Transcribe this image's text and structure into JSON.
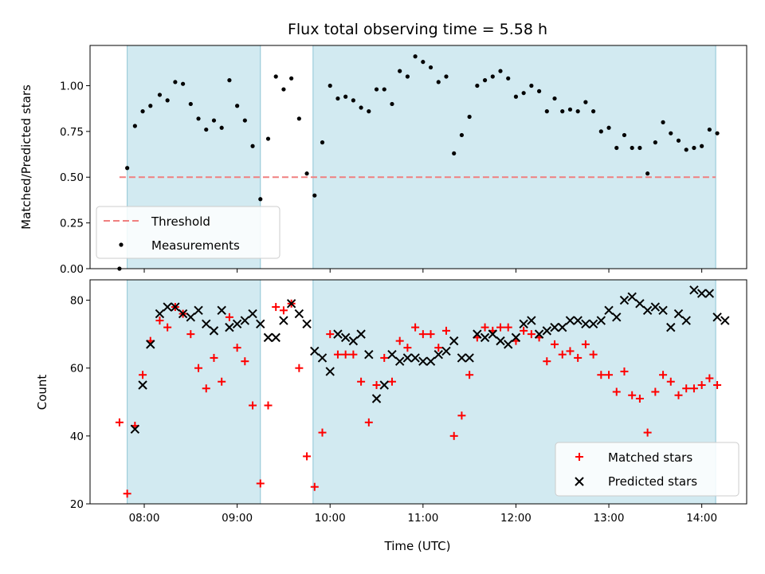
{
  "chart_data": [
    {
      "type": "scatter",
      "title": "Flux total observing time = 5.58 h",
      "ylabel": "Matched/Predicted stars",
      "ylim": [
        0,
        1.22
      ],
      "yticks": [
        "0.00",
        "0.25",
        "0.50",
        "0.75",
        "1.00"
      ],
      "ytick_values": [
        0,
        0.25,
        0.5,
        0.75,
        1.0
      ],
      "threshold": {
        "name": "Threshold",
        "value": 0.5,
        "x_range": [
          "07:44",
          "14:09"
        ],
        "color": "#f08080"
      },
      "measurements": {
        "name": "Measurements",
        "color": "#000000",
        "points": [
          [
            "07:44",
            0.0
          ],
          [
            "07:49",
            0.55
          ],
          [
            "07:54",
            0.78
          ],
          [
            "07:59",
            0.86
          ],
          [
            "08:04",
            0.89
          ],
          [
            "08:10",
            0.95
          ],
          [
            "08:15",
            0.92
          ],
          [
            "08:20",
            1.02
          ],
          [
            "08:25",
            1.01
          ],
          [
            "08:30",
            0.9
          ],
          [
            "08:35",
            0.82
          ],
          [
            "08:40",
            0.76
          ],
          [
            "08:45",
            0.81
          ],
          [
            "08:50",
            0.77
          ],
          [
            "08:55",
            1.03
          ],
          [
            "09:00",
            0.89
          ],
          [
            "09:05",
            0.81
          ],
          [
            "09:10",
            0.67
          ],
          [
            "09:15",
            0.38
          ],
          [
            "09:20",
            0.71
          ],
          [
            "09:25",
            1.05
          ],
          [
            "09:30",
            0.98
          ],
          [
            "09:35",
            1.04
          ],
          [
            "09:40",
            0.82
          ],
          [
            "09:45",
            0.52
          ],
          [
            "09:50",
            0.4
          ],
          [
            "09:55",
            0.69
          ],
          [
            "10:00",
            1.0
          ],
          [
            "10:05",
            0.93
          ],
          [
            "10:10",
            0.94
          ],
          [
            "10:15",
            0.92
          ],
          [
            "10:20",
            0.88
          ],
          [
            "10:25",
            0.86
          ],
          [
            "10:30",
            0.98
          ],
          [
            "10:35",
            0.98
          ],
          [
            "10:40",
            0.9
          ],
          [
            "10:45",
            1.08
          ],
          [
            "10:50",
            1.05
          ],
          [
            "10:55",
            1.16
          ],
          [
            "11:00",
            1.13
          ],
          [
            "11:05",
            1.1
          ],
          [
            "11:10",
            1.02
          ],
          [
            "11:15",
            1.05
          ],
          [
            "11:20",
            0.63
          ],
          [
            "11:25",
            0.73
          ],
          [
            "11:30",
            0.83
          ],
          [
            "11:35",
            1.0
          ],
          [
            "11:40",
            1.03
          ],
          [
            "11:45",
            1.05
          ],
          [
            "11:50",
            1.08
          ],
          [
            "11:55",
            1.04
          ],
          [
            "12:00",
            0.94
          ],
          [
            "12:05",
            0.96
          ],
          [
            "12:10",
            1.0
          ],
          [
            "12:15",
            0.97
          ],
          [
            "12:20",
            0.86
          ],
          [
            "12:25",
            0.93
          ],
          [
            "12:30",
            0.86
          ],
          [
            "12:35",
            0.87
          ],
          [
            "12:40",
            0.86
          ],
          [
            "12:45",
            0.91
          ],
          [
            "12:50",
            0.86
          ],
          [
            "12:55",
            0.75
          ],
          [
            "13:00",
            0.77
          ],
          [
            "13:05",
            0.66
          ],
          [
            "13:10",
            0.73
          ],
          [
            "13:15",
            0.66
          ],
          [
            "13:20",
            0.66
          ],
          [
            "13:25",
            0.52
          ],
          [
            "13:30",
            0.69
          ],
          [
            "13:35",
            0.8
          ],
          [
            "13:40",
            0.74
          ],
          [
            "13:45",
            0.7
          ],
          [
            "13:50",
            0.65
          ],
          [
            "13:55",
            0.66
          ],
          [
            "14:00",
            0.67
          ],
          [
            "14:05",
            0.76
          ],
          [
            "14:10",
            0.74
          ]
        ]
      },
      "legend": [
        "Threshold",
        "Measurements"
      ],
      "legend_position": "lower-left"
    },
    {
      "type": "scatter",
      "xlabel": "Time (UTC)",
      "ylabel": "Count",
      "ylim": [
        20,
        86
      ],
      "yticks": [
        "20",
        "40",
        "60",
        "80"
      ],
      "ytick_values": [
        20,
        40,
        60,
        80
      ],
      "xlim": [
        "07:25",
        "14:29"
      ],
      "xticks": [
        "08:00",
        "09:00",
        "10:00",
        "11:00",
        "12:00",
        "13:00",
        "14:00"
      ],
      "series": [
        {
          "name": "Matched stars",
          "marker": "+",
          "color": "#ff0000",
          "points": [
            [
              "07:44",
              44
            ],
            [
              "07:49",
              23
            ],
            [
              "07:54",
              43
            ],
            [
              "07:59",
              58
            ],
            [
              "08:04",
              68
            ],
            [
              "08:10",
              74
            ],
            [
              "08:15",
              72
            ],
            [
              "08:20",
              78
            ],
            [
              "08:25",
              76
            ],
            [
              "08:30",
              70
            ],
            [
              "08:35",
              60
            ],
            [
              "08:40",
              54
            ],
            [
              "08:45",
              63
            ],
            [
              "08:50",
              56
            ],
            [
              "08:55",
              75
            ],
            [
              "09:00",
              66
            ],
            [
              "09:05",
              62
            ],
            [
              "09:10",
              49
            ],
            [
              "09:15",
              26
            ],
            [
              "09:20",
              49
            ],
            [
              "09:25",
              78
            ],
            [
              "09:30",
              77
            ],
            [
              "09:35",
              79
            ],
            [
              "09:40",
              60
            ],
            [
              "09:45",
              34
            ],
            [
              "09:50",
              25
            ],
            [
              "09:55",
              41
            ],
            [
              "10:00",
              70
            ],
            [
              "10:05",
              64
            ],
            [
              "10:10",
              64
            ],
            [
              "10:15",
              64
            ],
            [
              "10:20",
              56
            ],
            [
              "10:25",
              44
            ],
            [
              "10:30",
              55
            ],
            [
              "10:35",
              63
            ],
            [
              "10:40",
              56
            ],
            [
              "10:45",
              68
            ],
            [
              "10:50",
              66
            ],
            [
              "10:55",
              72
            ],
            [
              "11:00",
              70
            ],
            [
              "11:05",
              70
            ],
            [
              "11:10",
              66
            ],
            [
              "11:15",
              71
            ],
            [
              "11:20",
              40
            ],
            [
              "11:25",
              46
            ],
            [
              "11:30",
              58
            ],
            [
              "11:35",
              69
            ],
            [
              "11:40",
              72
            ],
            [
              "11:45",
              71
            ],
            [
              "11:50",
              72
            ],
            [
              "11:55",
              72
            ],
            [
              "12:00",
              68
            ],
            [
              "12:05",
              71
            ],
            [
              "12:10",
              70
            ],
            [
              "12:15",
              69
            ],
            [
              "12:20",
              62
            ],
            [
              "12:25",
              67
            ],
            [
              "12:30",
              64
            ],
            [
              "12:35",
              65
            ],
            [
              "12:40",
              63
            ],
            [
              "12:45",
              67
            ],
            [
              "12:50",
              64
            ],
            [
              "12:55",
              58
            ],
            [
              "13:00",
              58
            ],
            [
              "13:05",
              53
            ],
            [
              "13:10",
              59
            ],
            [
              "13:15",
              52
            ],
            [
              "13:20",
              51
            ],
            [
              "13:25",
              41
            ],
            [
              "13:30",
              53
            ],
            [
              "13:35",
              58
            ],
            [
              "13:40",
              56
            ],
            [
              "13:45",
              52
            ],
            [
              "13:50",
              54
            ],
            [
              "13:55",
              54
            ],
            [
              "14:00",
              55
            ],
            [
              "14:05",
              57
            ],
            [
              "14:10",
              55
            ]
          ]
        },
        {
          "name": "Predicted stars",
          "marker": "x",
          "color": "#000000",
          "points": [
            [
              "07:54",
              42
            ],
            [
              "07:59",
              55
            ],
            [
              "08:04",
              67
            ],
            [
              "08:10",
              76
            ],
            [
              "08:15",
              78
            ],
            [
              "08:20",
              78
            ],
            [
              "08:25",
              76
            ],
            [
              "08:30",
              75
            ],
            [
              "08:35",
              77
            ],
            [
              "08:40",
              73
            ],
            [
              "08:45",
              71
            ],
            [
              "08:50",
              77
            ],
            [
              "08:55",
              72
            ],
            [
              "09:00",
              73
            ],
            [
              "09:05",
              74
            ],
            [
              "09:10",
              76
            ],
            [
              "09:15",
              73
            ],
            [
              "09:20",
              69
            ],
            [
              "09:25",
              69
            ],
            [
              "09:30",
              74
            ],
            [
              "09:35",
              79
            ],
            [
              "09:40",
              76
            ],
            [
              "09:45",
              73
            ],
            [
              "09:50",
              65
            ],
            [
              "09:55",
              63
            ],
            [
              "10:00",
              59
            ],
            [
              "10:05",
              70
            ],
            [
              "10:10",
              69
            ],
            [
              "10:15",
              68
            ],
            [
              "10:20",
              70
            ],
            [
              "10:25",
              64
            ],
            [
              "10:30",
              51
            ],
            [
              "10:35",
              55
            ],
            [
              "10:40",
              64
            ],
            [
              "10:45",
              62
            ],
            [
              "10:50",
              63
            ],
            [
              "10:55",
              63
            ],
            [
              "11:00",
              62
            ],
            [
              "11:05",
              62
            ],
            [
              "11:10",
              64
            ],
            [
              "11:15",
              65
            ],
            [
              "11:20",
              68
            ],
            [
              "11:25",
              63
            ],
            [
              "11:30",
              63
            ],
            [
              "11:35",
              70
            ],
            [
              "11:40",
              69
            ],
            [
              "11:45",
              70
            ],
            [
              "11:50",
              68
            ],
            [
              "11:55",
              67
            ],
            [
              "12:00",
              69
            ],
            [
              "12:05",
              73
            ],
            [
              "12:10",
              74
            ],
            [
              "12:15",
              70
            ],
            [
              "12:20",
              71
            ],
            [
              "12:25",
              72
            ],
            [
              "12:30",
              72
            ],
            [
              "12:35",
              74
            ],
            [
              "12:40",
              74
            ],
            [
              "12:45",
              73
            ],
            [
              "12:50",
              73
            ],
            [
              "12:55",
              74
            ],
            [
              "13:00",
              77
            ],
            [
              "13:05",
              75
            ],
            [
              "13:10",
              80
            ],
            [
              "13:15",
              81
            ],
            [
              "13:20",
              79
            ],
            [
              "13:25",
              77
            ],
            [
              "13:30",
              78
            ],
            [
              "13:35",
              77
            ],
            [
              "13:40",
              72
            ],
            [
              "13:45",
              76
            ],
            [
              "13:50",
              74
            ],
            [
              "13:55",
              83
            ],
            [
              "14:00",
              82
            ],
            [
              "14:05",
              82
            ],
            [
              "14:10",
              75
            ],
            [
              "14:15",
              74
            ]
          ]
        }
      ],
      "legend": [
        "Matched stars",
        "Predicted stars"
      ],
      "legend_position": "lower-right"
    }
  ],
  "shaded_intervals": [
    [
      "07:49",
      "09:15"
    ],
    [
      "09:49",
      "14:09"
    ]
  ],
  "colors": {
    "shade": "#add8e6",
    "shade_edge": "#8ec5d5"
  }
}
